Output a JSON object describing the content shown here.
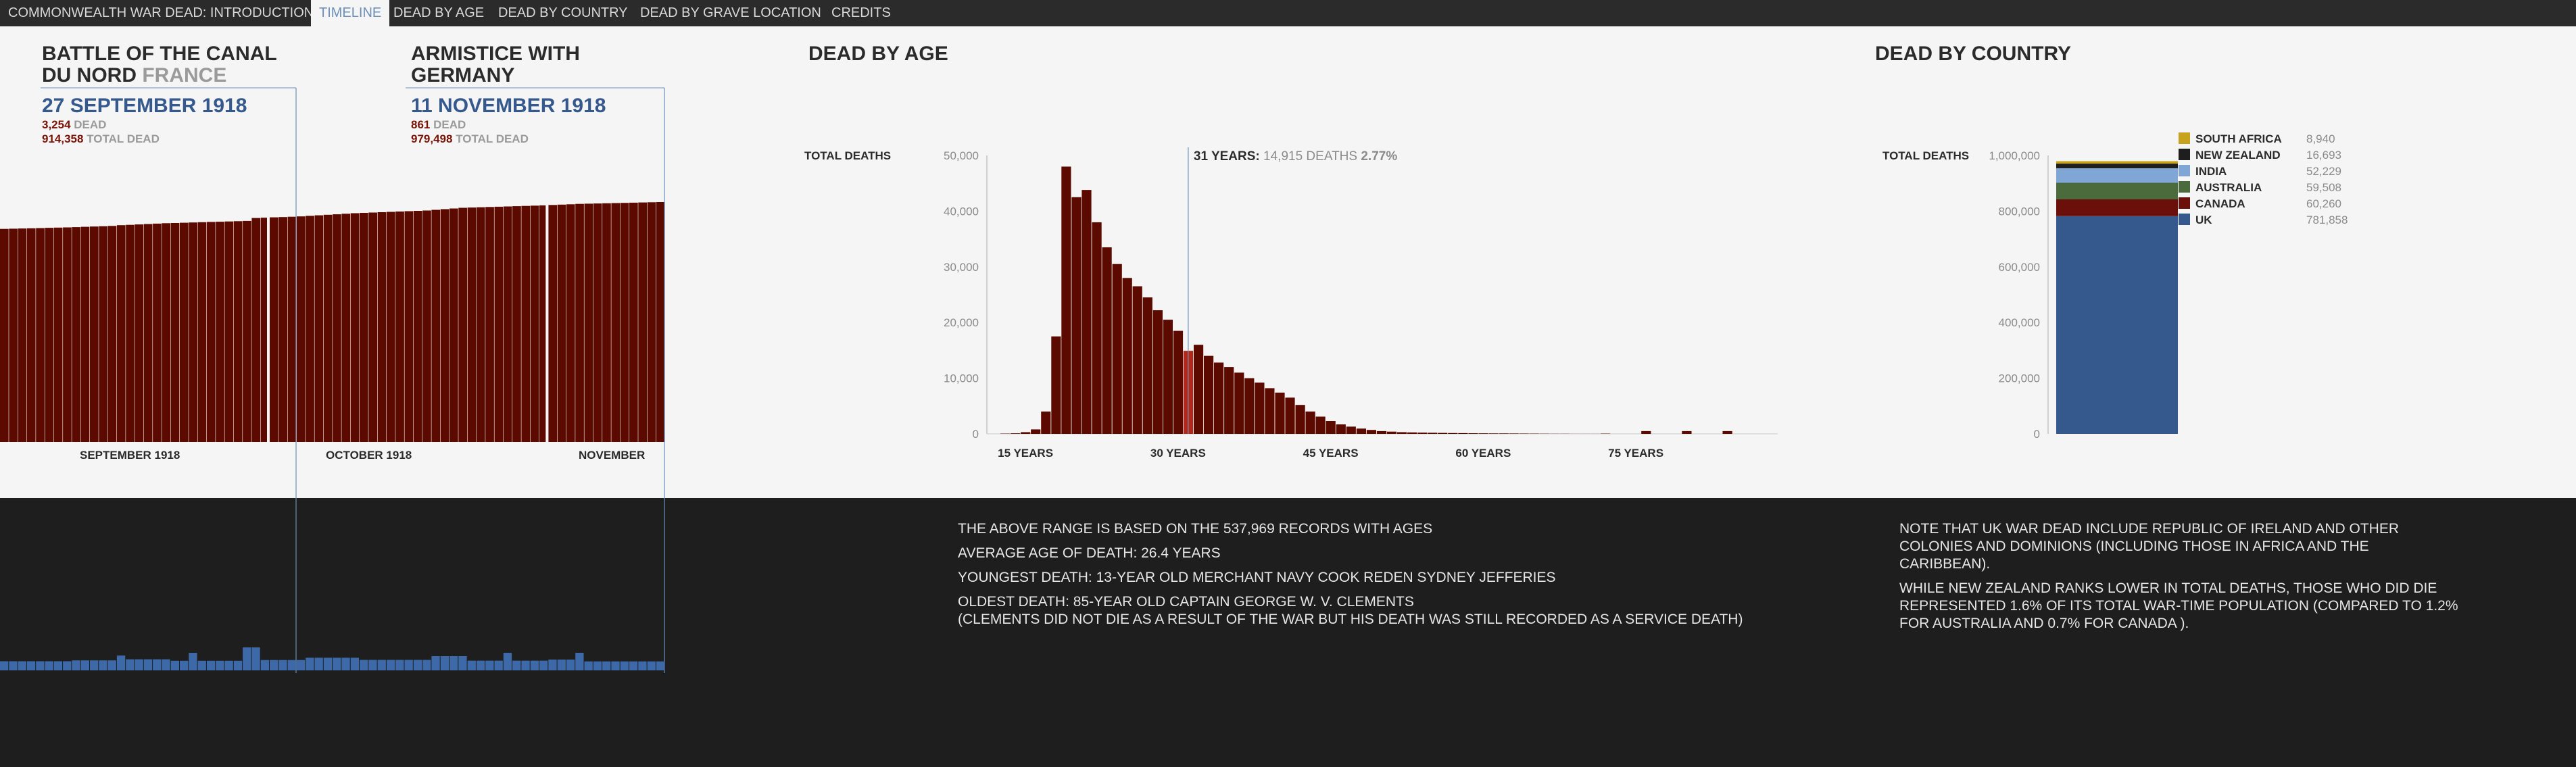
{
  "nav": {
    "tabs": [
      {
        "label": "COMMONWEALTH WAR DEAD: INTRODUCTION",
        "active": false
      },
      {
        "label": "TIMELINE",
        "active": true
      },
      {
        "label": "DEAD BY AGE",
        "active": false
      },
      {
        "label": "DEAD BY COUNTRY",
        "active": false
      },
      {
        "label": "DEAD BY GRAVE LOCATION",
        "active": false
      },
      {
        "label": "CREDITS",
        "active": false
      }
    ]
  },
  "colors": {
    "dead": "#5c0a00",
    "highlight": "#b3281b",
    "uk": "#35598c",
    "canada": "#6b0f0a",
    "australia": "#4b6b3c",
    "india": "#7fa6d4",
    "new_zealand": "#1e1e1e",
    "south_africa": "#c7a21c",
    "minibar": "#3e69a8",
    "guide": "#6c8fb8"
  },
  "timeline": {
    "events": [
      {
        "title": "BATTLE OF THE CANAL DU NORD",
        "title_suffix": "FRANCE",
        "date": "27 SEPTEMBER 1918",
        "dead": "3,254",
        "dead_label": "DEAD",
        "total": "914,358",
        "total_label": "TOTAL DEAD"
      },
      {
        "title": "ARMISTICE WITH GERMANY",
        "title_suffix": "",
        "date": "11 NOVEMBER 1918",
        "dead": "861",
        "dead_label": "DEAD",
        "total": "979,498",
        "total_label": "TOTAL DEAD"
      }
    ],
    "axis_labels": [
      "SEPTEMBER 1918",
      "OCTOBER 1918",
      "NOVEMBER"
    ]
  },
  "age_chart": {
    "heading": "DEAD BY AGE",
    "ylabel": "TOTAL DEATHS",
    "highlight_label": "31 YEARS:",
    "highlight_detail": "14,915 DEATHS",
    "highlight_pct": "2.77%"
  },
  "country_chart": {
    "heading": "DEAD BY COUNTRY",
    "ylabel": "TOTAL DEATHS"
  },
  "age_notes": [
    "THE ABOVE RANGE IS BASED ON THE 537,969 RECORDS WITH AGES",
    "AVERAGE AGE OF DEATH: 26.4 YEARS",
    "YOUNGEST DEATH: 13-YEAR OLD MERCHANT NAVY COOK REDEN SYDNEY JEFFERIES",
    "OLDEST DEATH: 85-YEAR OLD CAPTAIN GEORGE W. V. CLEMENTS",
    "(CLEMENTS DID NOT DIE AS A RESULT OF THE WAR BUT HIS DEATH WAS STILL RECORDED AS A SERVICE DEATH)"
  ],
  "country_notes": [
    "NOTE THAT UK WAR DEAD INCLUDE REPUBLIC OF IRELAND AND OTHER COLONIES AND DOMINIONS (INCLUDING THOSE IN AFRICA AND THE CARIBBEAN).",
    "WHILE NEW ZEALAND RANKS LOWER IN TOTAL DEATHS, THOSE WHO DID DIE REPRESENTED 1.6% OF ITS TOTAL WAR-TIME POPULATION (COMPARED TO 1.2% FOR AUSTRALIA AND 0.7% FOR CANADA )."
  ],
  "chart_data": [
    {
      "type": "bar",
      "title": "",
      "xlabel": "",
      "ylabel": "TOTAL DEAD",
      "categories": [
        "SEPTEMBER 1918",
        "OCTOBER 1918",
        "NOVEMBER"
      ],
      "cumulative_start": 869000,
      "cumulative_end": 979498,
      "cumulative_path": [
        [
          0,
          869000
        ],
        [
          8,
          876000
        ],
        [
          13,
          882000
        ],
        [
          14,
          885000
        ],
        [
          19,
          893000
        ],
        [
          28,
          902500
        ],
        [
          29,
          914358
        ],
        [
          34,
          921000
        ],
        [
          40,
          934000
        ],
        [
          48,
          945000
        ],
        [
          52,
          956000
        ],
        [
          61,
          966000
        ],
        [
          65,
          972000
        ],
        [
          74,
          979498
        ]
      ],
      "month_start_days": [
        0,
        30,
        61
      ],
      "event_days": [
        27,
        71
      ]
    },
    {
      "type": "bar",
      "title": "DEAD BY AGE",
      "xlabel": "",
      "ylabel": "TOTAL DEATHS",
      "x": [
        13,
        14,
        15,
        16,
        17,
        18,
        19,
        20,
        21,
        22,
        23,
        24,
        25,
        26,
        27,
        28,
        29,
        30,
        31,
        32,
        33,
        34,
        35,
        36,
        37,
        38,
        39,
        40,
        41,
        42,
        43,
        44,
        45,
        46,
        47,
        48,
        49,
        50,
        51,
        52,
        53,
        54,
        55,
        56,
        57,
        58,
        59,
        60,
        61,
        62,
        63,
        64,
        65,
        66,
        67,
        68,
        69,
        70,
        71,
        72,
        73,
        74,
        75,
        76,
        77,
        78,
        79,
        80,
        81,
        82,
        83,
        84,
        85
      ],
      "values": [
        50,
        100,
        300,
        800,
        4000,
        17500,
        48000,
        42500,
        43800,
        38000,
        33500,
        30500,
        28000,
        26500,
        24500,
        22200,
        20500,
        18500,
        14915,
        16000,
        14000,
        12800,
        12000,
        11000,
        10000,
        9200,
        8200,
        7400,
        6500,
        5200,
        4000,
        3100,
        2300,
        1700,
        1300,
        950,
        700,
        500,
        400,
        300,
        250,
        220,
        190,
        170,
        150,
        130,
        110,
        100,
        90,
        80,
        70,
        60,
        50,
        40,
        30,
        20,
        15,
        12,
        10,
        50,
        0,
        0,
        0,
        500,
        0,
        0,
        0,
        500,
        0,
        0,
        0,
        500,
        0
      ],
      "highlight_x": 31,
      "ticks_x": [
        15,
        30,
        45,
        60,
        75
      ],
      "tick_labels_x": [
        "15 YEARS",
        "30 YEARS",
        "45 YEARS",
        "60 YEARS",
        "75 YEARS"
      ],
      "ticks_y": [
        0,
        10000,
        20000,
        30000,
        40000,
        50000
      ],
      "tick_labels_y": [
        "0",
        "10,000",
        "20,000",
        "30,000",
        "40,000",
        "50,000"
      ],
      "ylim": [
        0,
        50000
      ]
    },
    {
      "type": "bar",
      "title": "DEAD BY COUNTRY",
      "xlabel": "",
      "ylabel": "TOTAL DEATHS",
      "series": [
        {
          "name": "UK",
          "value": 781858,
          "display": "781,858",
          "color_key": "uk"
        },
        {
          "name": "CANADA",
          "value": 60260,
          "display": "60,260",
          "color_key": "canada"
        },
        {
          "name": "AUSTRALIA",
          "value": 59508,
          "display": "59,508",
          "color_key": "australia"
        },
        {
          "name": "INDIA",
          "value": 52229,
          "display": "52,229",
          "color_key": "india"
        },
        {
          "name": "NEW ZEALAND",
          "value": 16693,
          "display": "16,693",
          "color_key": "new_zealand"
        },
        {
          "name": "SOUTH AFRICA",
          "value": 8940,
          "display": "8,940",
          "color_key": "south_africa"
        }
      ],
      "ticks_y": [
        0,
        200000,
        400000,
        600000,
        800000,
        1000000
      ],
      "tick_labels_y": [
        "0",
        "200,000",
        "400,000",
        "600,000",
        "800,000",
        "1,000,000"
      ],
      "ylim": [
        0,
        1000000
      ],
      "legend": "right"
    }
  ]
}
